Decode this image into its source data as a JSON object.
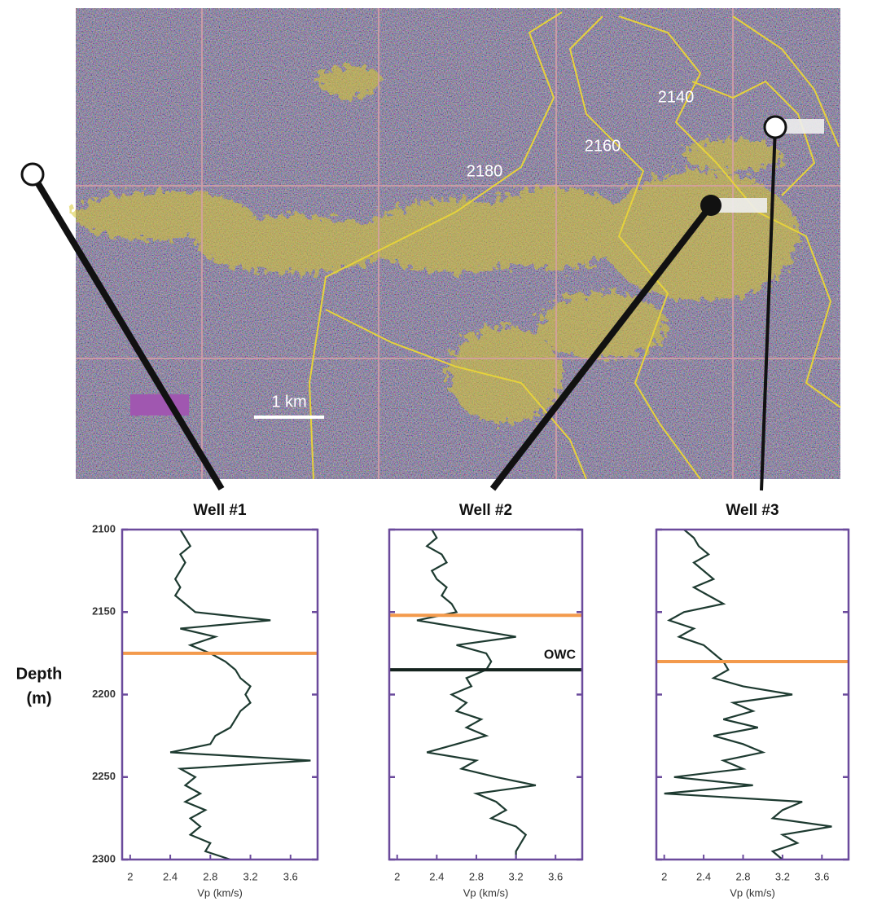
{
  "map": {
    "contour_labels": [
      "2140",
      "2160",
      "2180"
    ],
    "scale_label": "1 km"
  },
  "chart_data": [
    {
      "type": "line",
      "title": "Well #1",
      "x_label": "Vp (km/s)",
      "y_label": [
        "Depth",
        "(m)"
      ],
      "color": "#1d3a30",
      "y": [
        2100,
        2105,
        2110,
        2115,
        2120,
        2125,
        2130,
        2135,
        2140,
        2145,
        2150,
        2155,
        2160,
        2165,
        2170,
        2175,
        2180,
        2185,
        2190,
        2195,
        2200,
        2205,
        2210,
        2215,
        2220,
        2225,
        2230,
        2235,
        2240,
        2245,
        2250,
        2255,
        2260,
        2265,
        2270,
        2275,
        2280,
        2285,
        2290,
        2295,
        2300
      ],
      "values": [
        2.5,
        2.55,
        2.6,
        2.5,
        2.55,
        2.5,
        2.45,
        2.5,
        2.45,
        2.55,
        2.65,
        3.4,
        2.5,
        2.85,
        2.6,
        2.8,
        2.95,
        3.05,
        3.1,
        3.2,
        3.15,
        3.2,
        3.1,
        3.05,
        3.0,
        2.85,
        2.8,
        2.4,
        3.8,
        2.5,
        2.65,
        2.55,
        2.7,
        2.55,
        2.75,
        2.6,
        2.7,
        2.6,
        2.8,
        2.75,
        3.0
      ],
      "xlim": [
        1.92,
        3.87
      ],
      "xticks": [
        2,
        2.4,
        2.8,
        3.2,
        3.6
      ],
      "ylim": [
        2100,
        2300
      ],
      "y_inverted": true,
      "yticks": [
        2100,
        2150,
        2200,
        2250,
        2300
      ],
      "ytick_labels": true,
      "reference_lines": [
        {
          "depth": 2175,
          "color": "#f39a4c"
        }
      ]
    },
    {
      "type": "line",
      "title": "Well #2",
      "x_label": "Vp (km/s)",
      "color": "#1d3a30",
      "y": [
        2100,
        2105,
        2110,
        2115,
        2120,
        2125,
        2130,
        2135,
        2140,
        2145,
        2150,
        2155,
        2160,
        2165,
        2170,
        2175,
        2180,
        2185,
        2190,
        2195,
        2200,
        2205,
        2210,
        2215,
        2220,
        2225,
        2230,
        2235,
        2240,
        2245,
        2250,
        2255,
        2260,
        2265,
        2270,
        2275,
        2280,
        2285,
        2290,
        2295,
        2300
      ],
      "values": [
        2.35,
        2.4,
        2.3,
        2.45,
        2.5,
        2.35,
        2.4,
        2.5,
        2.45,
        2.55,
        2.6,
        2.2,
        2.7,
        3.2,
        2.6,
        2.9,
        2.95,
        2.9,
        2.7,
        2.75,
        2.55,
        2.7,
        2.6,
        2.85,
        2.7,
        2.9,
        2.6,
        2.3,
        2.8,
        2.65,
        3.0,
        3.4,
        2.8,
        3.0,
        3.1,
        2.95,
        3.2,
        3.3,
        3.25,
        3.2,
        3.2
      ],
      "xlim": [
        1.92,
        3.87
      ],
      "xticks": [
        2,
        2.4,
        2.8,
        3.2,
        3.6
      ],
      "ylim": [
        2100,
        2300
      ],
      "y_inverted": true,
      "yticks": [
        2100,
        2150,
        2200,
        2250,
        2300
      ],
      "ytick_labels": false,
      "reference_lines": [
        {
          "depth": 2152,
          "color": "#f39a4c"
        },
        {
          "depth": 2185,
          "color": "#14231e",
          "label": "OWC"
        }
      ]
    },
    {
      "type": "line",
      "title": "Well #3",
      "x_label": "Vp (km/s)",
      "color": "#1d3a30",
      "y": [
        2100,
        2105,
        2110,
        2115,
        2120,
        2125,
        2130,
        2135,
        2140,
        2145,
        2150,
        2155,
        2160,
        2165,
        2170,
        2175,
        2180,
        2185,
        2190,
        2195,
        2200,
        2205,
        2210,
        2215,
        2220,
        2225,
        2230,
        2235,
        2240,
        2245,
        2250,
        2255,
        2260,
        2265,
        2270,
        2275,
        2280,
        2285,
        2290,
        2295,
        2300
      ],
      "values": [
        2.2,
        2.3,
        2.35,
        2.45,
        2.3,
        2.4,
        2.5,
        2.3,
        2.45,
        2.6,
        2.2,
        2.05,
        2.3,
        2.15,
        2.4,
        2.5,
        2.6,
        2.65,
        2.5,
        2.8,
        3.3,
        2.7,
        2.9,
        2.6,
        2.95,
        2.5,
        2.8,
        3.0,
        2.6,
        2.8,
        2.1,
        2.9,
        2.0,
        3.4,
        3.2,
        3.1,
        3.7,
        3.2,
        3.35,
        3.1,
        3.2
      ],
      "xlim": [
        1.92,
        3.87
      ],
      "xticks": [
        2,
        2.4,
        2.8,
        3.2,
        3.6
      ],
      "ylim": [
        2100,
        2300
      ],
      "y_inverted": true,
      "yticks": [
        2100,
        2150,
        2200,
        2250,
        2300
      ],
      "ytick_labels": false,
      "reference_lines": [
        {
          "depth": 2180,
          "color": "#f39a4c"
        }
      ]
    }
  ]
}
